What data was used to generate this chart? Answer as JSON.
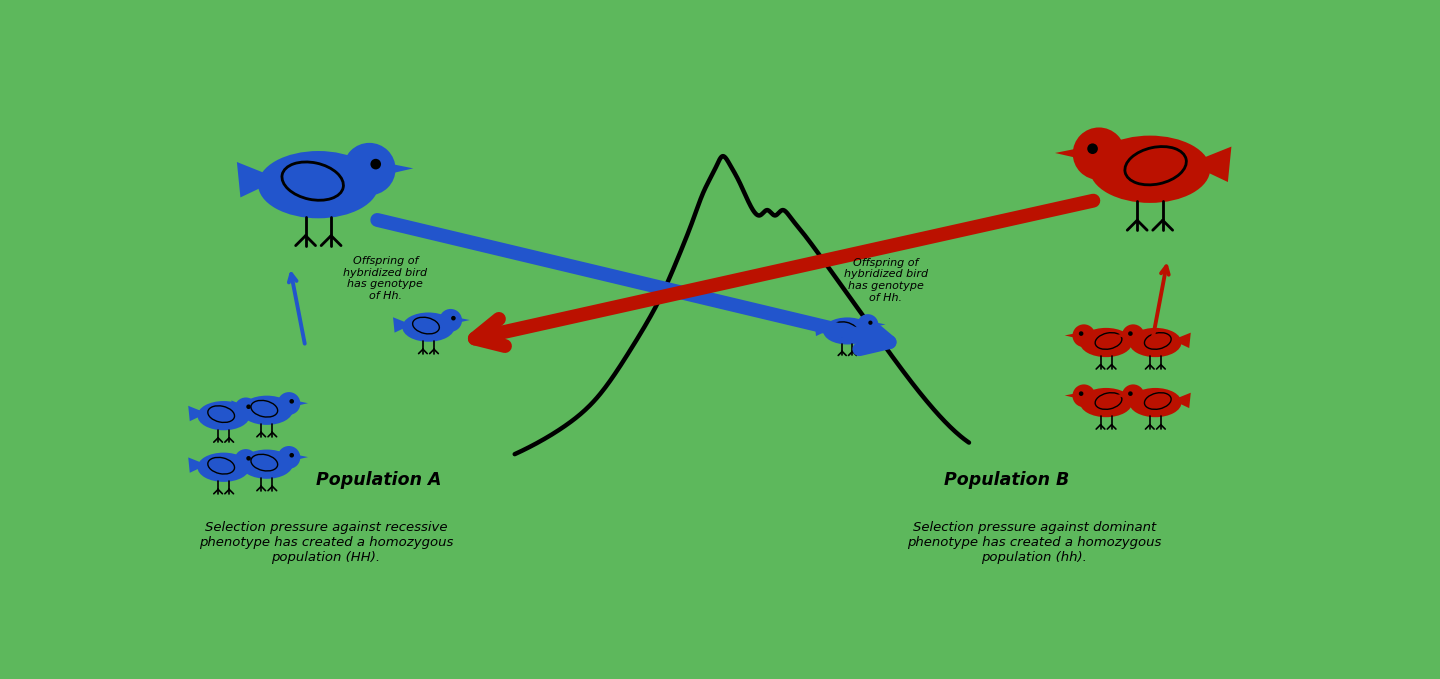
{
  "bg_color": "#5db85c",
  "blue": "#2255cc",
  "red": "#bb1100",
  "black": "#000000",
  "pop_a_label": "Population A",
  "pop_a_text": "Selection pressure against recessive\nphenotype has created a homozygous\npopulation (HH).",
  "pop_b_label": "Population B",
  "pop_b_text": "Selection pressure against dominant\nphenotype has created a homozygous\npopulation (hh).",
  "offspring_text": "Offspring of\nhybridized bird\nhas genotype\nof Hh.",
  "fig_w": 14.4,
  "fig_h": 6.79,
  "dpi": 100
}
